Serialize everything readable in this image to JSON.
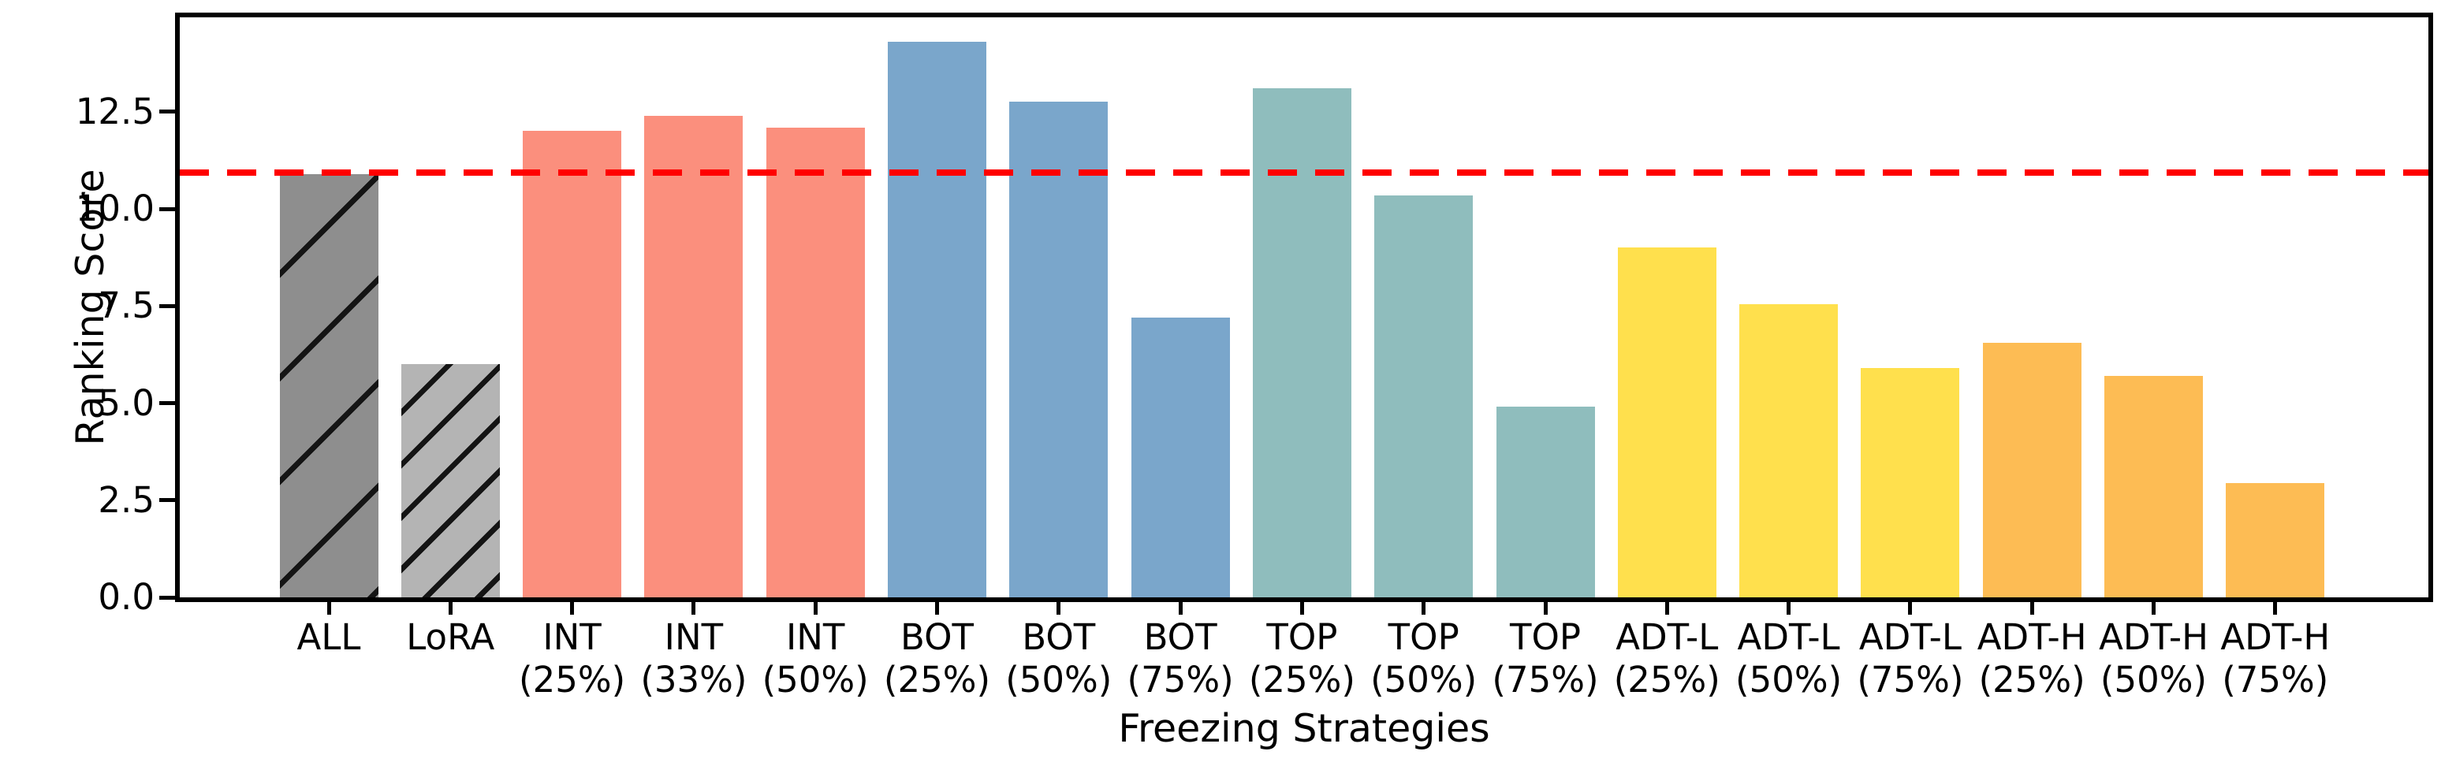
{
  "chart_data": {
    "type": "bar",
    "title": "",
    "xlabel": "Freezing Strategies",
    "ylabel": "Ranking Score",
    "ylim": [
      0,
      14.93
    ],
    "yticks": [
      {
        "value": 0.0,
        "label": "0.0"
      },
      {
        "value": 2.5,
        "label": "2.5"
      },
      {
        "value": 5.0,
        "label": "5.0"
      },
      {
        "value": 7.5,
        "label": "7.5"
      },
      {
        "value": 10.0,
        "label": "10.0"
      },
      {
        "value": 12.5,
        "label": "12.5"
      }
    ],
    "grid": false,
    "legend": "none",
    "reference_line": {
      "value": 10.93,
      "color": "#ff0000",
      "style": "dashed",
      "meaning": "baseline at ALL score"
    },
    "categories": [
      "ALL",
      "LoRA",
      "INT (25%)",
      "INT (33%)",
      "INT (50%)",
      "BOT (25%)",
      "BOT (50%)",
      "BOT (75%)",
      "TOP (25%)",
      "TOP (50%)",
      "TOP (75%)",
      "ADT-L (25%)",
      "ADT-L (50%)",
      "ADT-L (75%)",
      "ADT-H (25%)",
      "ADT-H (50%)",
      "ADT-H (75%)"
    ],
    "bars": [
      {
        "id": "all",
        "label_line1": "ALL",
        "label_line2": "",
        "value": 10.9,
        "color": "#8E8E8E",
        "hatch": "wide"
      },
      {
        "id": "lora",
        "label_line1": "LoRA",
        "label_line2": "",
        "value": 6.0,
        "color": "#B4B4B4",
        "hatch": "dense"
      },
      {
        "id": "int-25",
        "label_line1": "INT",
        "label_line2": "(25%)",
        "value": 12.0,
        "color": "#FB8F7D",
        "hatch": "none"
      },
      {
        "id": "int-33",
        "label_line1": "INT",
        "label_line2": "(33%)",
        "value": 12.4,
        "color": "#FB8F7D",
        "hatch": "none"
      },
      {
        "id": "int-50",
        "label_line1": "INT",
        "label_line2": "(50%)",
        "value": 12.1,
        "color": "#FB8F7D",
        "hatch": "none"
      },
      {
        "id": "bot-25",
        "label_line1": "BOT",
        "label_line2": "(25%)",
        "value": 14.3,
        "color": "#7AA6CB",
        "hatch": "none"
      },
      {
        "id": "bot-50",
        "label_line1": "BOT",
        "label_line2": "(50%)",
        "value": 12.75,
        "color": "#7AA6CB",
        "hatch": "none"
      },
      {
        "id": "bot-75",
        "label_line1": "BOT",
        "label_line2": "(75%)",
        "value": 7.2,
        "color": "#7AA6CB",
        "hatch": "none"
      },
      {
        "id": "top-25",
        "label_line1": "TOP",
        "label_line2": "(25%)",
        "value": 13.1,
        "color": "#8FBDBD",
        "hatch": "none"
      },
      {
        "id": "top-50",
        "label_line1": "TOP",
        "label_line2": "(50%)",
        "value": 10.35,
        "color": "#8FBDBD",
        "hatch": "none"
      },
      {
        "id": "top-75",
        "label_line1": "TOP",
        "label_line2": "(75%)",
        "value": 4.9,
        "color": "#8FBDBD",
        "hatch": "none"
      },
      {
        "id": "adt-l-25",
        "label_line1": "ADT-L",
        "label_line2": "(25%)",
        "value": 9.0,
        "color": "#FFE04D",
        "hatch": "none"
      },
      {
        "id": "adt-l-50",
        "label_line1": "ADT-L",
        "label_line2": "(50%)",
        "value": 7.55,
        "color": "#FFE04D",
        "hatch": "none"
      },
      {
        "id": "adt-l-75",
        "label_line1": "ADT-L",
        "label_line2": "(75%)",
        "value": 5.9,
        "color": "#FFE04D",
        "hatch": "none"
      },
      {
        "id": "adt-h-25",
        "label_line1": "ADT-H",
        "label_line2": "(25%)",
        "value": 6.55,
        "color": "#FDBC54",
        "hatch": "none"
      },
      {
        "id": "adt-h-50",
        "label_line1": "ADT-H",
        "label_line2": "(50%)",
        "value": 5.7,
        "color": "#FDBC54",
        "hatch": "none"
      },
      {
        "id": "adt-h-75",
        "label_line1": "ADT-H",
        "label_line2": "(75%)",
        "value": 2.95,
        "color": "#FDBC54",
        "hatch": "none"
      }
    ]
  },
  "style_colors": {
    "frame": "#000000",
    "background": "#ffffff",
    "hatch_line": "#141414",
    "reference_red": "#ff0000"
  }
}
